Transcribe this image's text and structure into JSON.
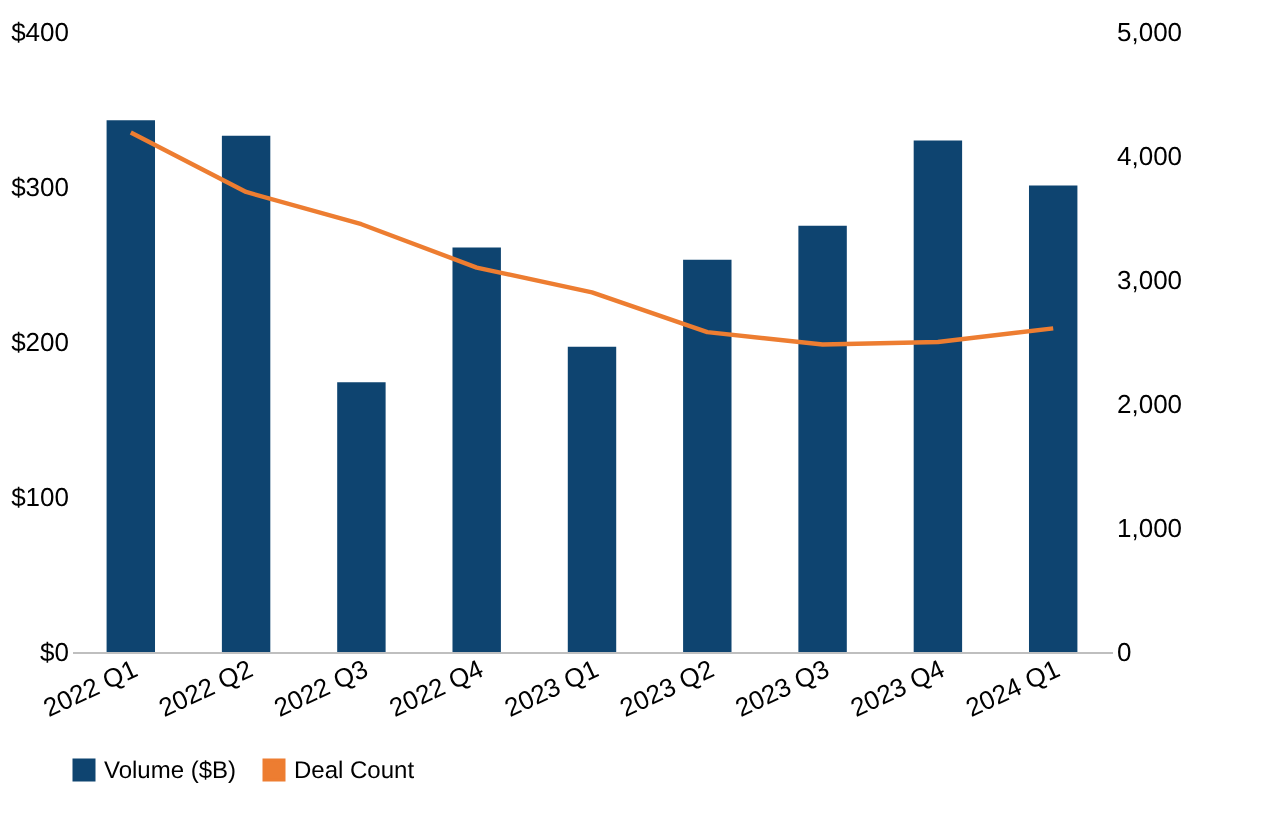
{
  "chart_data": {
    "type": "bar",
    "categories": [
      "2022 Q1",
      "2022 Q2",
      "2022 Q3",
      "2022 Q4",
      "2023 Q1",
      "2023 Q2",
      "2023 Q3",
      "2023 Q4",
      "2024 Q1"
    ],
    "series": [
      {
        "name": "Volume ($B)",
        "color": "#0e4470",
        "values": [
          343,
          333,
          174,
          261,
          197,
          253,
          275,
          330,
          301
        ]
      },
      {
        "name": "Deal Count",
        "type": "line",
        "axis": "y2",
        "color": "#ed7d31",
        "values": [
          4190,
          3710,
          3450,
          3100,
          2900,
          2580,
          2480,
          2500,
          2610
        ]
      }
    ],
    "ylim": [
      0,
      400
    ],
    "yticks": [
      {
        "value": 0,
        "label": "$0"
      },
      {
        "value": 100,
        "label": "$100"
      },
      {
        "value": 200,
        "label": "$200"
      },
      {
        "value": 300,
        "label": "$300"
      },
      {
        "value": 400,
        "label": "$400"
      }
    ],
    "y2lim": [
      0,
      5000
    ],
    "y2ticks": [
      {
        "value": 0,
        "label": "0"
      },
      {
        "value": 1000,
        "label": "1,000"
      },
      {
        "value": 2000,
        "label": "2,000"
      },
      {
        "value": 3000,
        "label": "3,000"
      },
      {
        "value": 4000,
        "label": "4,000"
      },
      {
        "value": 5000,
        "label": "5,000"
      }
    ],
    "legend": "bottom",
    "grid": false
  }
}
